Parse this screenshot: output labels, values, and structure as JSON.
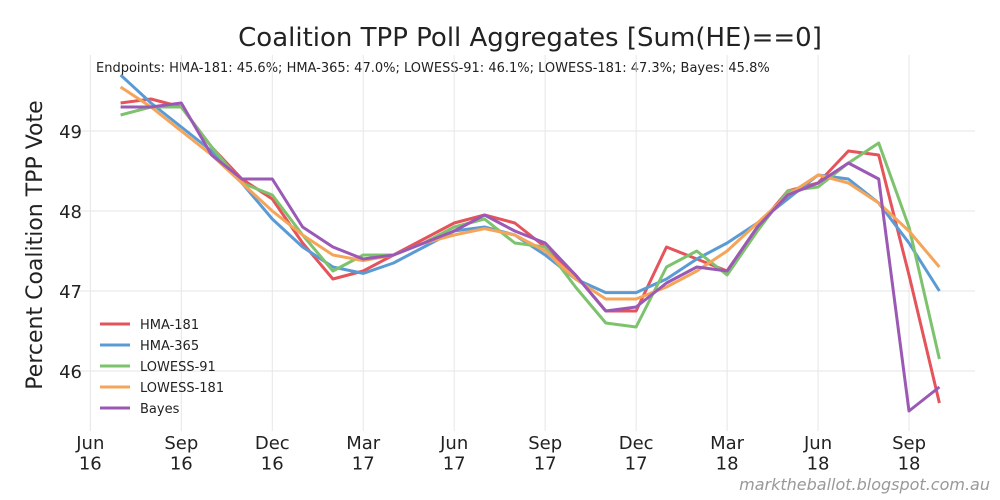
{
  "chart_data": {
    "type": "line",
    "title": "Coalition TPP Poll Aggregates [Sum(HE)==0]",
    "annotation": "Endpoints: HMA-181: 45.6%; HMA-365: 47.0%; LOWESS-91: 46.1%; LOWESS-181: 47.3%; Bayes: 45.8%",
    "ylabel": "Percent Coalition TPP Vote",
    "footer": "marktheballot.blogspot.com.au",
    "x": [
      "2016-07",
      "2016-08",
      "2016-09",
      "2016-10",
      "2016-11",
      "2016-12",
      "2017-01",
      "2017-02",
      "2017-03",
      "2017-04",
      "2017-05",
      "2017-06",
      "2017-07",
      "2017-08",
      "2017-09",
      "2017-10",
      "2017-11",
      "2017-12",
      "2018-01",
      "2018-02",
      "2018-03",
      "2018-04",
      "2018-05",
      "2018-06",
      "2018-07",
      "2018-08",
      "2018-09",
      "2018-10"
    ],
    "series": [
      {
        "name": "HMA-181",
        "color": "#e5535b",
        "values": [
          49.35,
          49.4,
          49.3,
          48.8,
          48.4,
          48.15,
          47.6,
          47.15,
          47.25,
          47.45,
          47.65,
          47.85,
          47.95,
          47.85,
          47.55,
          47.2,
          46.75,
          46.75,
          47.55,
          47.4,
          47.25,
          47.8,
          48.25,
          48.35,
          48.75,
          48.7,
          47.2,
          45.6
        ]
      },
      {
        "name": "HMA-365",
        "color": "#5b9bd5",
        "values": [
          49.7,
          49.35,
          49.05,
          48.75,
          48.35,
          47.9,
          47.55,
          47.3,
          47.22,
          47.35,
          47.55,
          47.75,
          47.8,
          47.7,
          47.45,
          47.15,
          46.98,
          46.98,
          47.15,
          47.4,
          47.6,
          47.85,
          48.15,
          48.45,
          48.4,
          48.1,
          47.6,
          47.0
        ]
      },
      {
        "name": "LOWESS-91",
        "color": "#7dc36e",
        "values": [
          49.2,
          49.3,
          49.3,
          48.8,
          48.35,
          48.2,
          47.7,
          47.25,
          47.45,
          47.45,
          47.6,
          47.8,
          47.9,
          47.6,
          47.55,
          47.05,
          46.6,
          46.55,
          47.3,
          47.5,
          47.2,
          47.75,
          48.25,
          48.3,
          48.6,
          48.85,
          47.8,
          46.15
        ]
      },
      {
        "name": "LOWESS-181",
        "color": "#f5a55a",
        "values": [
          49.55,
          49.3,
          49.0,
          48.7,
          48.35,
          48.0,
          47.7,
          47.45,
          47.38,
          47.45,
          47.6,
          47.7,
          47.78,
          47.7,
          47.5,
          47.15,
          46.9,
          46.9,
          47.05,
          47.25,
          47.5,
          47.85,
          48.2,
          48.45,
          48.35,
          48.1,
          47.75,
          47.3
        ]
      },
      {
        "name": "Bayes",
        "color": "#9b59b6",
        "values": [
          49.3,
          49.3,
          49.35,
          48.7,
          48.4,
          48.4,
          47.8,
          47.55,
          47.4,
          47.45,
          47.6,
          47.75,
          47.95,
          47.75,
          47.6,
          47.2,
          46.75,
          46.8,
          47.1,
          47.3,
          47.25,
          47.8,
          48.2,
          48.35,
          48.6,
          48.4,
          45.5,
          45.8
        ]
      }
    ],
    "xlim": [
      "2016-05",
      "2018-12"
    ],
    "xticks": [
      {
        "value": "2016-06",
        "label": "Jun\n16"
      },
      {
        "value": "2016-09",
        "label": "Sep\n16"
      },
      {
        "value": "2016-12",
        "label": "Dec\n16"
      },
      {
        "value": "2017-03",
        "label": "Mar\n17"
      },
      {
        "value": "2017-06",
        "label": "Jun\n17"
      },
      {
        "value": "2017-09",
        "label": "Sep\n17"
      },
      {
        "value": "2017-12",
        "label": "Dec\n17"
      },
      {
        "value": "2018-03",
        "label": "Mar\n18"
      },
      {
        "value": "2018-06",
        "label": "Jun\n18"
      },
      {
        "value": "2018-09",
        "label": "Sep\n18"
      }
    ],
    "ylim": [
      45.25,
      49.95
    ],
    "yticks": [
      46,
      47,
      48,
      49
    ],
    "grid": true,
    "legend": "lower left"
  }
}
